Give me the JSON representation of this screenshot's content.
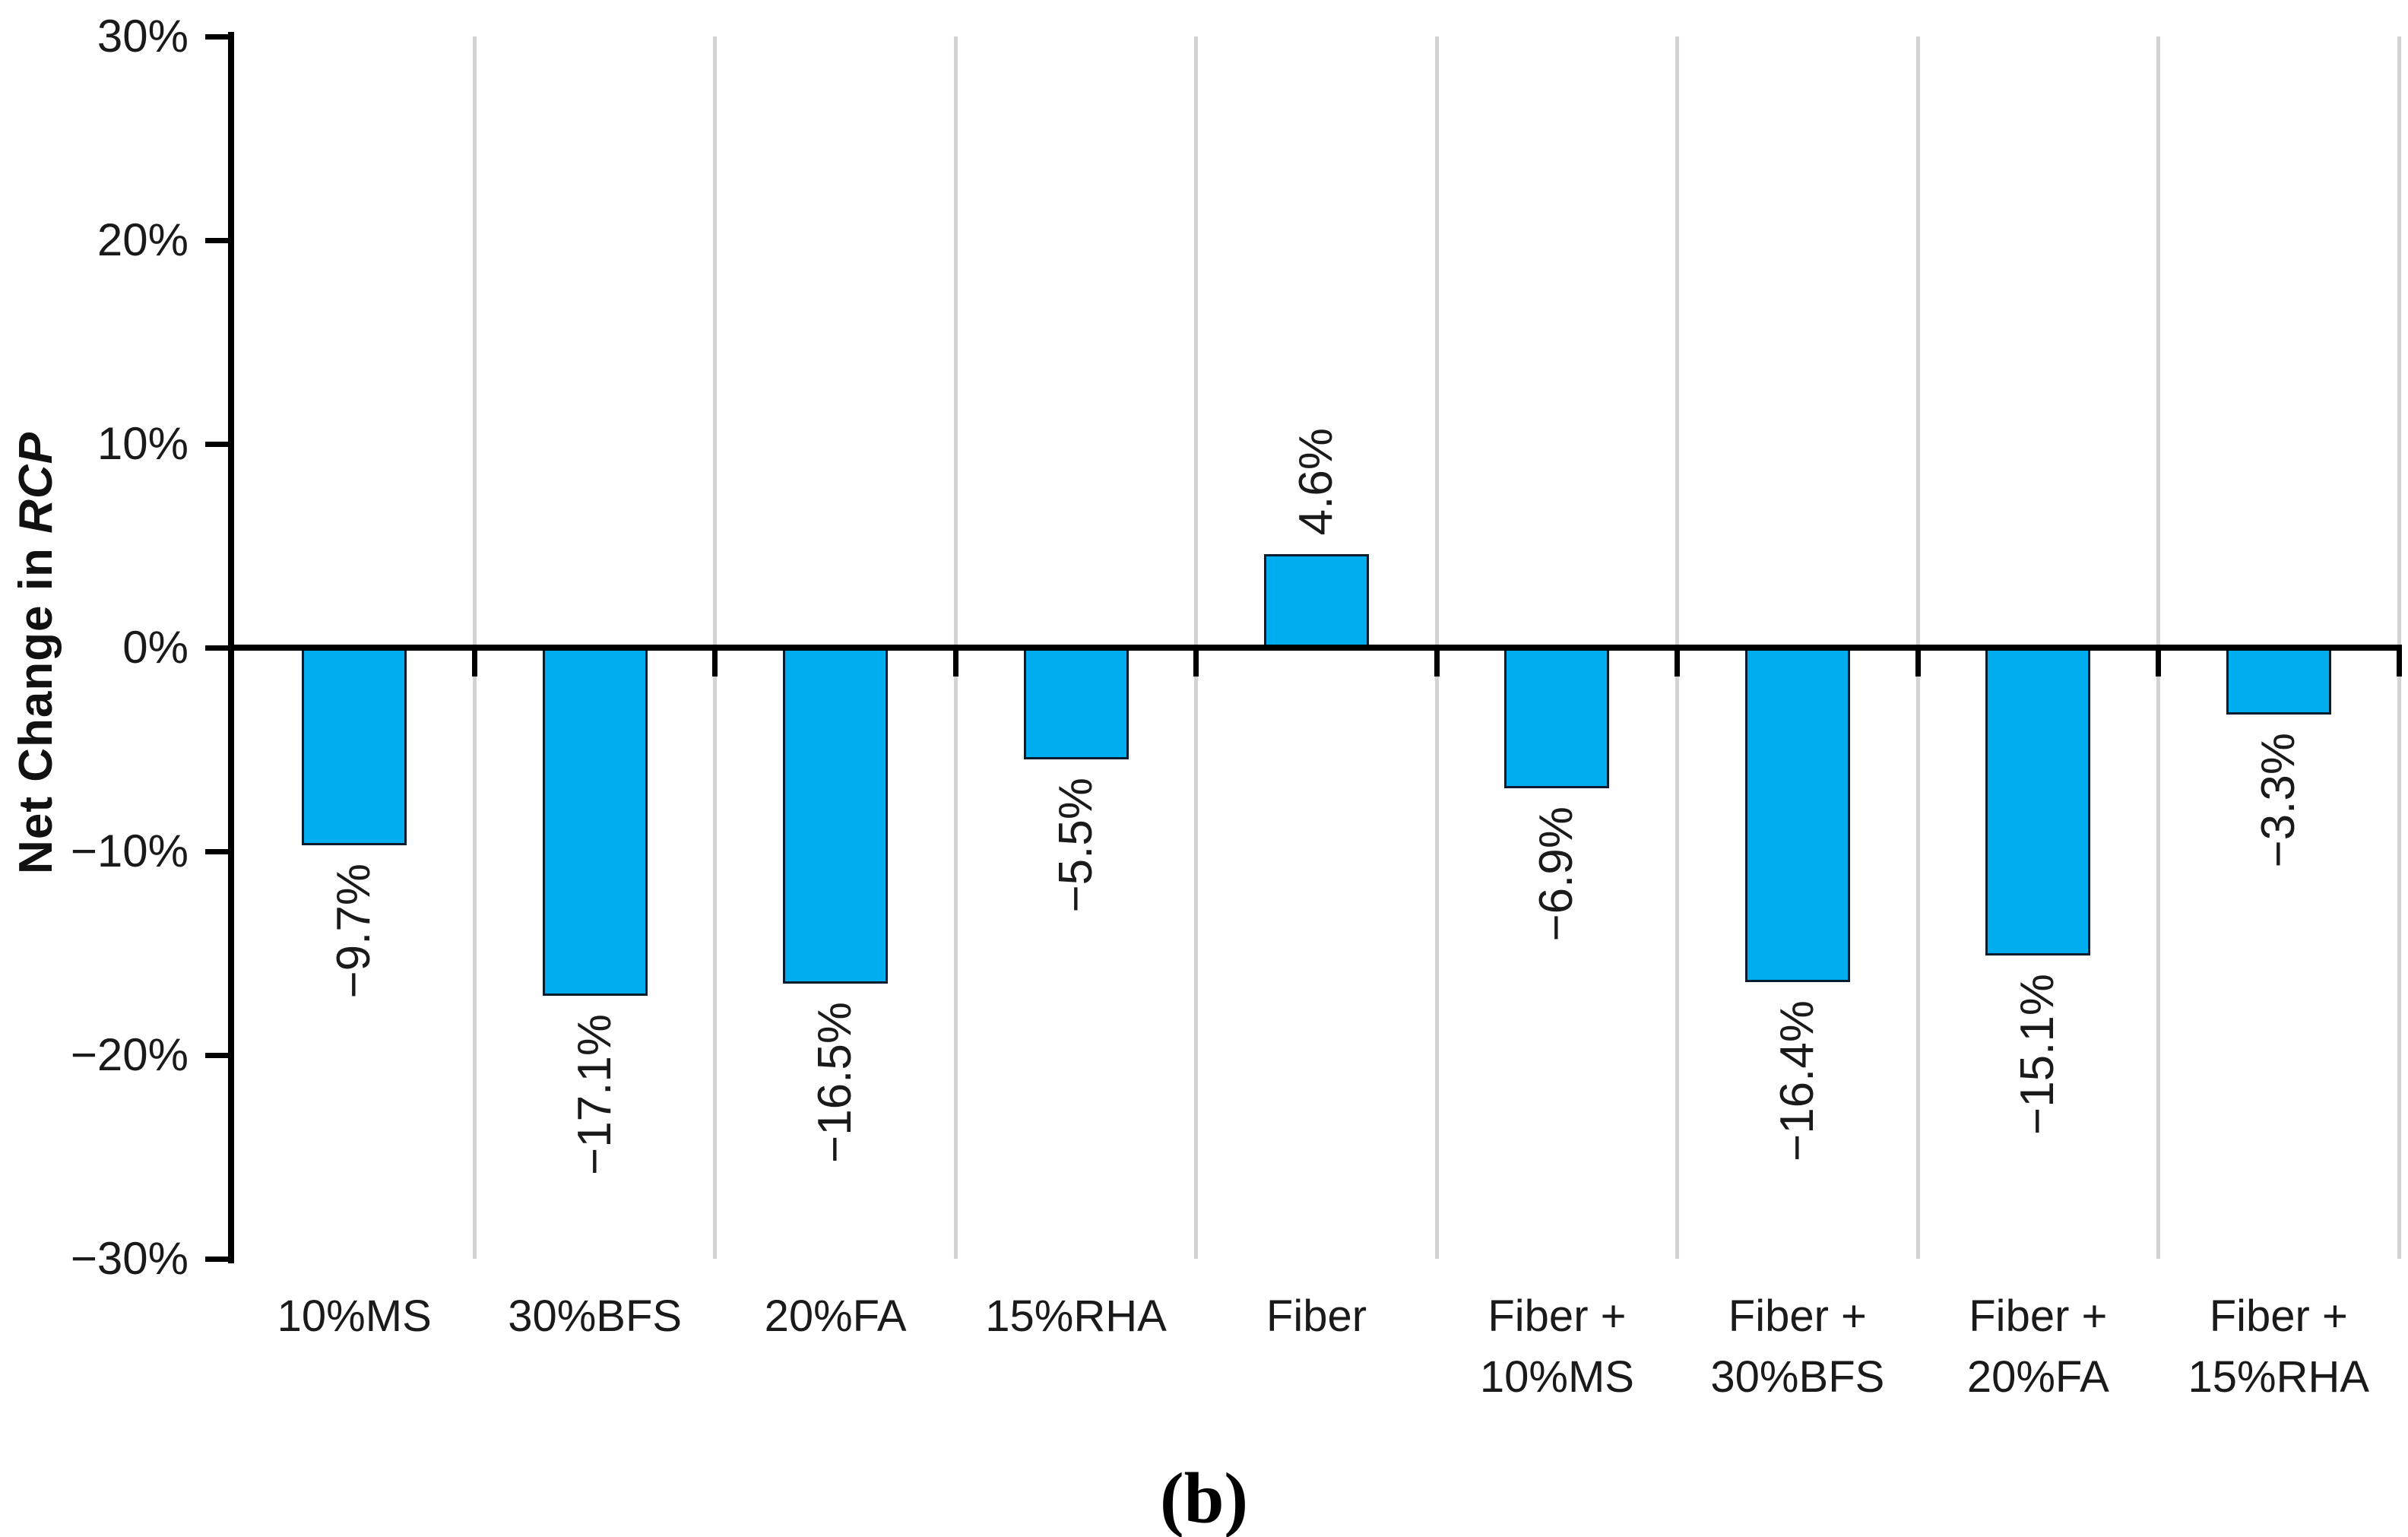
{
  "figure": {
    "caption": "(b)",
    "y_axis_title": {
      "prefix": "Net Change in ",
      "italic": "RCP"
    }
  },
  "chart_data": {
    "type": "bar",
    "title": "",
    "xlabel": "",
    "ylabel": "Net Change in RCP",
    "categories": [
      "10%MS",
      "30%BFS",
      "20%FA",
      "15%RHA",
      "Fiber",
      "Fiber + 10%MS",
      "Fiber + 30%BFS",
      "Fiber + 20%FA",
      "Fiber + 15%RHA"
    ],
    "category_display_lines": [
      [
        "10%MS"
      ],
      [
        "30%BFS"
      ],
      [
        "20%FA"
      ],
      [
        "15%RHA"
      ],
      [
        "Fiber"
      ],
      [
        "Fiber +",
        "10%MS"
      ],
      [
        "Fiber +",
        "30%BFS"
      ],
      [
        "Fiber +",
        "20%FA"
      ],
      [
        "Fiber +",
        "15%RHA"
      ]
    ],
    "values": [
      -9.7,
      -17.1,
      -16.5,
      -5.5,
      4.6,
      -6.9,
      -16.4,
      -15.1,
      -3.3
    ],
    "value_labels": [
      "−9.7%",
      "−17.1%",
      "−16.5%",
      "−5.5%",
      "4.6%",
      "−6.9%",
      "−16.4%",
      "−15.1%",
      "−3.3%"
    ],
    "ylim": [
      -30,
      30
    ],
    "ytick_step": 10,
    "ytick_labels": [
      "30%",
      "20%",
      "10%",
      "0%",
      "−10%",
      "−20%",
      "−30%"
    ],
    "legend": "none",
    "grid": "vertical gridlines at category boundaries",
    "colors": {
      "bar_fill": "#00AEEF",
      "bar_border": "#0B1C2E",
      "gridline": "#D3D3D3",
      "axis": "#000000",
      "text": "#1A1A1A"
    }
  }
}
